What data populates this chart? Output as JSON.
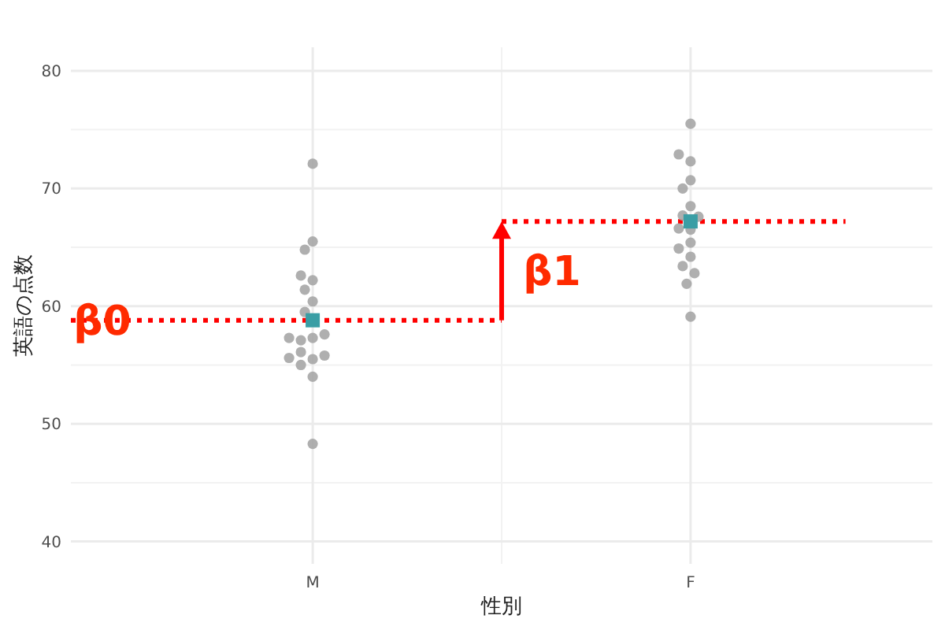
{
  "chart_data": {
    "type": "scatter",
    "xlabel": "性別",
    "ylabel": "英語の点数",
    "categories": [
      "M",
      "F"
    ],
    "ylim": [
      38.1,
      82
    ],
    "yticks": [
      40,
      50,
      60,
      70,
      80
    ],
    "grid": true,
    "series": [
      {
        "marker": "circle",
        "color": "#a6a6a6",
        "x": [
          "M",
          "M",
          "M",
          "M",
          "M",
          "M",
          "M",
          "M",
          "M",
          "M",
          "M",
          "M",
          "M",
          "M",
          "M",
          "M",
          "M",
          "M",
          "M",
          "F",
          "F",
          "F",
          "F",
          "F",
          "F",
          "F",
          "F",
          "F",
          "F",
          "F",
          "F",
          "F",
          "F",
          "F",
          "F",
          "F"
        ],
        "values": [
          72.1,
          65.5,
          64.8,
          62.2,
          62.6,
          61.4,
          60.4,
          59.5,
          57.3,
          57.1,
          57.6,
          57.3,
          55.5,
          56.1,
          55.8,
          55.6,
          55.0,
          54.0,
          48.3,
          75.5,
          72.3,
          72.9,
          70.7,
          70.0,
          68.5,
          67.7,
          67.6,
          66.5,
          66.6,
          65.4,
          64.9,
          64.2,
          63.4,
          62.8,
          61.9,
          59.1
        ]
      },
      {
        "marker": "square",
        "color": "#3a9ea5",
        "x": [
          "M",
          "F"
        ],
        "values": [
          58.8,
          67.2
        ]
      }
    ],
    "ref_lines": [
      {
        "axis": "y",
        "value": 58.8,
        "color": "#ff0000",
        "line_style": "dotted"
      },
      {
        "axis": "y",
        "value": 67.2,
        "color": "#ff0000",
        "line_style": "dotted"
      }
    ],
    "annotations": [
      "β0",
      "β1"
    ]
  }
}
